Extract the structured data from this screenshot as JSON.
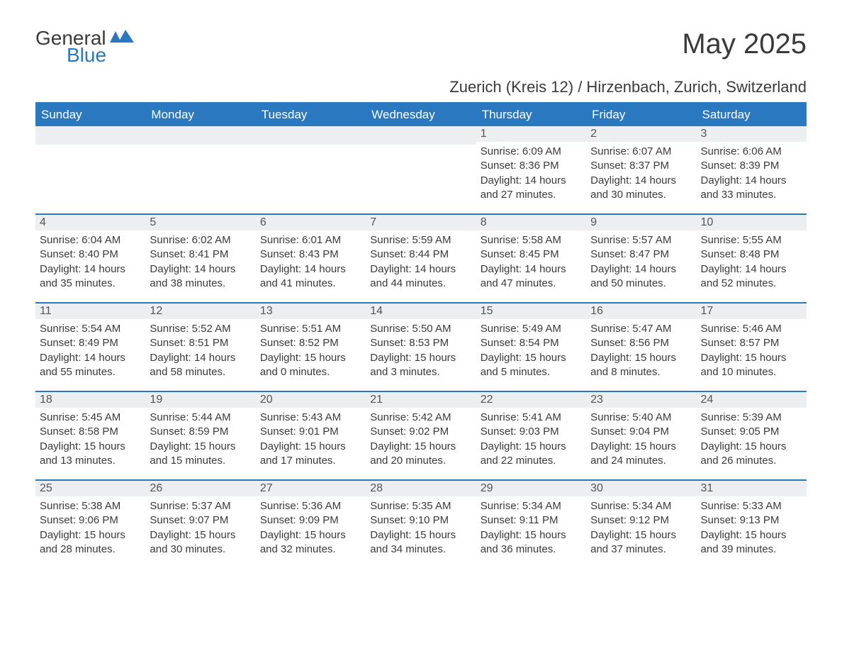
{
  "logo": {
    "text1": "General",
    "text2": "Blue"
  },
  "title": "May 2025",
  "subtitle": "Zuerich (Kreis 12) / Hirzenbach, Zurich, Switzerland",
  "colors": {
    "accent": "#2a79c0",
    "header_bg": "#2a79c0",
    "header_text": "#ffffff",
    "daynum_bg": "#eceeef",
    "text": "#3a3a3a",
    "page_bg": "#ffffff"
  },
  "weekdays": [
    "Sunday",
    "Monday",
    "Tuesday",
    "Wednesday",
    "Thursday",
    "Friday",
    "Saturday"
  ],
  "weeks": [
    [
      {
        "day": null
      },
      {
        "day": null
      },
      {
        "day": null
      },
      {
        "day": null
      },
      {
        "day": "1",
        "sunrise": "Sunrise: 6:09 AM",
        "sunset": "Sunset: 8:36 PM",
        "daylight1": "Daylight: 14 hours",
        "daylight2": "and 27 minutes."
      },
      {
        "day": "2",
        "sunrise": "Sunrise: 6:07 AM",
        "sunset": "Sunset: 8:37 PM",
        "daylight1": "Daylight: 14 hours",
        "daylight2": "and 30 minutes."
      },
      {
        "day": "3",
        "sunrise": "Sunrise: 6:06 AM",
        "sunset": "Sunset: 8:39 PM",
        "daylight1": "Daylight: 14 hours",
        "daylight2": "and 33 minutes."
      }
    ],
    [
      {
        "day": "4",
        "sunrise": "Sunrise: 6:04 AM",
        "sunset": "Sunset: 8:40 PM",
        "daylight1": "Daylight: 14 hours",
        "daylight2": "and 35 minutes."
      },
      {
        "day": "5",
        "sunrise": "Sunrise: 6:02 AM",
        "sunset": "Sunset: 8:41 PM",
        "daylight1": "Daylight: 14 hours",
        "daylight2": "and 38 minutes."
      },
      {
        "day": "6",
        "sunrise": "Sunrise: 6:01 AM",
        "sunset": "Sunset: 8:43 PM",
        "daylight1": "Daylight: 14 hours",
        "daylight2": "and 41 minutes."
      },
      {
        "day": "7",
        "sunrise": "Sunrise: 5:59 AM",
        "sunset": "Sunset: 8:44 PM",
        "daylight1": "Daylight: 14 hours",
        "daylight2": "and 44 minutes."
      },
      {
        "day": "8",
        "sunrise": "Sunrise: 5:58 AM",
        "sunset": "Sunset: 8:45 PM",
        "daylight1": "Daylight: 14 hours",
        "daylight2": "and 47 minutes."
      },
      {
        "day": "9",
        "sunrise": "Sunrise: 5:57 AM",
        "sunset": "Sunset: 8:47 PM",
        "daylight1": "Daylight: 14 hours",
        "daylight2": "and 50 minutes."
      },
      {
        "day": "10",
        "sunrise": "Sunrise: 5:55 AM",
        "sunset": "Sunset: 8:48 PM",
        "daylight1": "Daylight: 14 hours",
        "daylight2": "and 52 minutes."
      }
    ],
    [
      {
        "day": "11",
        "sunrise": "Sunrise: 5:54 AM",
        "sunset": "Sunset: 8:49 PM",
        "daylight1": "Daylight: 14 hours",
        "daylight2": "and 55 minutes."
      },
      {
        "day": "12",
        "sunrise": "Sunrise: 5:52 AM",
        "sunset": "Sunset: 8:51 PM",
        "daylight1": "Daylight: 14 hours",
        "daylight2": "and 58 minutes."
      },
      {
        "day": "13",
        "sunrise": "Sunrise: 5:51 AM",
        "sunset": "Sunset: 8:52 PM",
        "daylight1": "Daylight: 15 hours",
        "daylight2": "and 0 minutes."
      },
      {
        "day": "14",
        "sunrise": "Sunrise: 5:50 AM",
        "sunset": "Sunset: 8:53 PM",
        "daylight1": "Daylight: 15 hours",
        "daylight2": "and 3 minutes."
      },
      {
        "day": "15",
        "sunrise": "Sunrise: 5:49 AM",
        "sunset": "Sunset: 8:54 PM",
        "daylight1": "Daylight: 15 hours",
        "daylight2": "and 5 minutes."
      },
      {
        "day": "16",
        "sunrise": "Sunrise: 5:47 AM",
        "sunset": "Sunset: 8:56 PM",
        "daylight1": "Daylight: 15 hours",
        "daylight2": "and 8 minutes."
      },
      {
        "day": "17",
        "sunrise": "Sunrise: 5:46 AM",
        "sunset": "Sunset: 8:57 PM",
        "daylight1": "Daylight: 15 hours",
        "daylight2": "and 10 minutes."
      }
    ],
    [
      {
        "day": "18",
        "sunrise": "Sunrise: 5:45 AM",
        "sunset": "Sunset: 8:58 PM",
        "daylight1": "Daylight: 15 hours",
        "daylight2": "and 13 minutes."
      },
      {
        "day": "19",
        "sunrise": "Sunrise: 5:44 AM",
        "sunset": "Sunset: 8:59 PM",
        "daylight1": "Daylight: 15 hours",
        "daylight2": "and 15 minutes."
      },
      {
        "day": "20",
        "sunrise": "Sunrise: 5:43 AM",
        "sunset": "Sunset: 9:01 PM",
        "daylight1": "Daylight: 15 hours",
        "daylight2": "and 17 minutes."
      },
      {
        "day": "21",
        "sunrise": "Sunrise: 5:42 AM",
        "sunset": "Sunset: 9:02 PM",
        "daylight1": "Daylight: 15 hours",
        "daylight2": "and 20 minutes."
      },
      {
        "day": "22",
        "sunrise": "Sunrise: 5:41 AM",
        "sunset": "Sunset: 9:03 PM",
        "daylight1": "Daylight: 15 hours",
        "daylight2": "and 22 minutes."
      },
      {
        "day": "23",
        "sunrise": "Sunrise: 5:40 AM",
        "sunset": "Sunset: 9:04 PM",
        "daylight1": "Daylight: 15 hours",
        "daylight2": "and 24 minutes."
      },
      {
        "day": "24",
        "sunrise": "Sunrise: 5:39 AM",
        "sunset": "Sunset: 9:05 PM",
        "daylight1": "Daylight: 15 hours",
        "daylight2": "and 26 minutes."
      }
    ],
    [
      {
        "day": "25",
        "sunrise": "Sunrise: 5:38 AM",
        "sunset": "Sunset: 9:06 PM",
        "daylight1": "Daylight: 15 hours",
        "daylight2": "and 28 minutes."
      },
      {
        "day": "26",
        "sunrise": "Sunrise: 5:37 AM",
        "sunset": "Sunset: 9:07 PM",
        "daylight1": "Daylight: 15 hours",
        "daylight2": "and 30 minutes."
      },
      {
        "day": "27",
        "sunrise": "Sunrise: 5:36 AM",
        "sunset": "Sunset: 9:09 PM",
        "daylight1": "Daylight: 15 hours",
        "daylight2": "and 32 minutes."
      },
      {
        "day": "28",
        "sunrise": "Sunrise: 5:35 AM",
        "sunset": "Sunset: 9:10 PM",
        "daylight1": "Daylight: 15 hours",
        "daylight2": "and 34 minutes."
      },
      {
        "day": "29",
        "sunrise": "Sunrise: 5:34 AM",
        "sunset": "Sunset: 9:11 PM",
        "daylight1": "Daylight: 15 hours",
        "daylight2": "and 36 minutes."
      },
      {
        "day": "30",
        "sunrise": "Sunrise: 5:34 AM",
        "sunset": "Sunset: 9:12 PM",
        "daylight1": "Daylight: 15 hours",
        "daylight2": "and 37 minutes."
      },
      {
        "day": "31",
        "sunrise": "Sunrise: 5:33 AM",
        "sunset": "Sunset: 9:13 PM",
        "daylight1": "Daylight: 15 hours",
        "daylight2": "and 39 minutes."
      }
    ]
  ]
}
